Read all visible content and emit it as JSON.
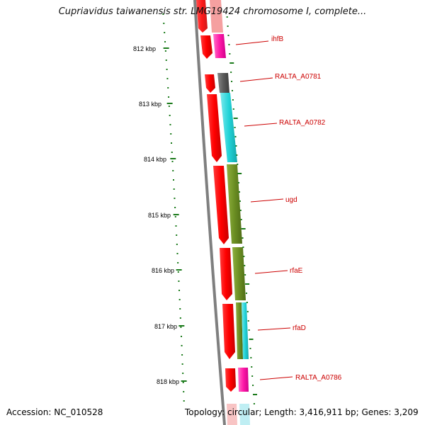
{
  "title": "Cupriavidus taiwanensis str. LMG19424 chromosome I, complete...",
  "footer": {
    "accession": "Accession: NC_010528",
    "topology": "Topology: circular; Length: 3,416,911 bp; Genes: 3,209"
  },
  "ruler": {
    "labels": [
      "812 kbp",
      "813 kbp",
      "814 kbp",
      "815 kbp",
      "816 kbp",
      "817 kbp",
      "818 kbp"
    ]
  },
  "genes": [
    "ihfB",
    "RALTA_A0781",
    "RALTA_A0782",
    "ugd",
    "rfaE",
    "rfaD",
    "RALTA_A0786"
  ],
  "colors": {
    "backbone": "#7f7f7f",
    "cds": "#ff0000",
    "ruler_tick": "#1a7a1a",
    "gene_label": "#cc0000",
    "magenta": "#ff1aa8",
    "grey": "#555555",
    "cyan": "#22d3d8",
    "olive": "#6b8e23"
  }
}
